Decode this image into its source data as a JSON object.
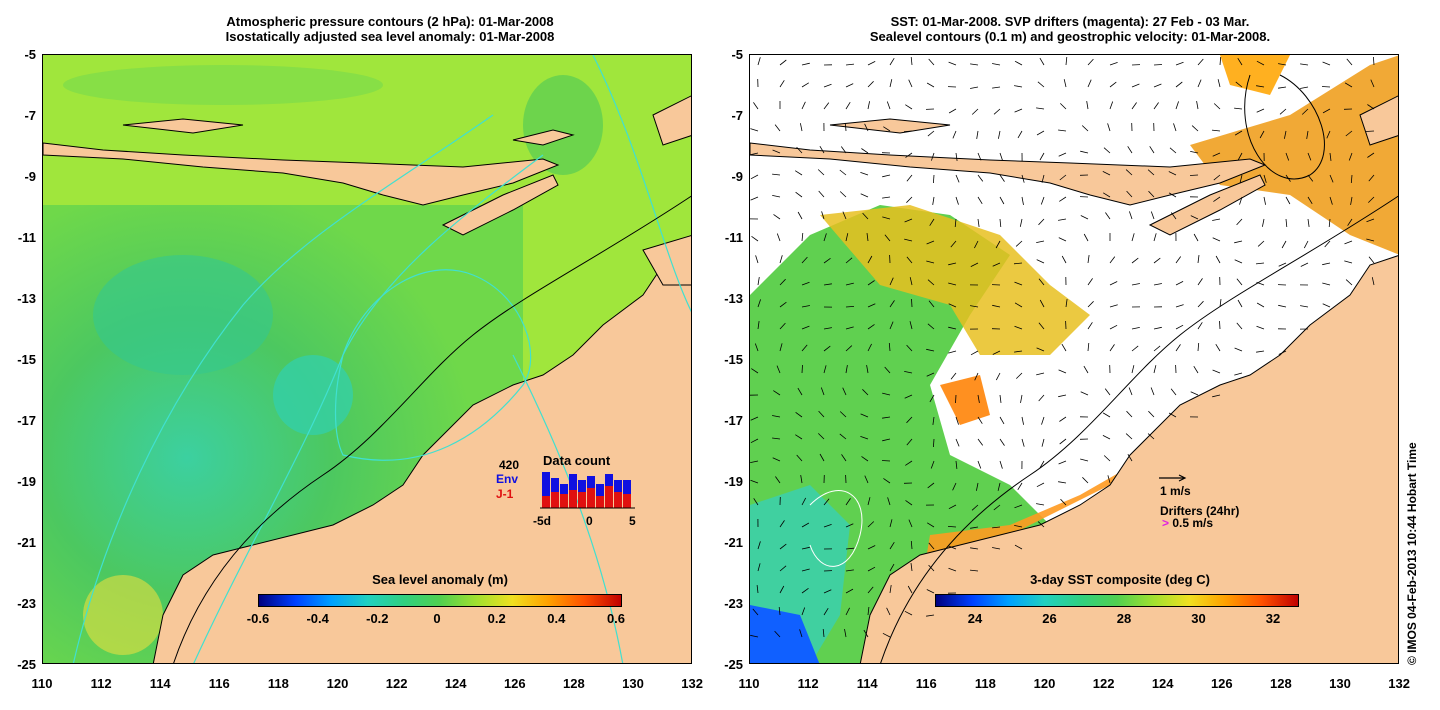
{
  "left_panel": {
    "title_line1": "Atmospheric pressure contours (2 hPa): 01-Mar-2008",
    "title_line2": "Isostatically adjusted sea level anomaly: 01-Mar-2008",
    "y_ticks": [
      "-5",
      "-7",
      "-9",
      "-11",
      "-13",
      "-15",
      "-17",
      "-19",
      "-21",
      "-23",
      "-25"
    ],
    "x_ticks": [
      "110",
      "112",
      "114",
      "116",
      "118",
      "120",
      "122",
      "124",
      "126",
      "128",
      "130",
      "132"
    ],
    "colorbar": {
      "label": "Sea level anomaly (m)",
      "ticks": [
        "-0.6",
        "-0.4",
        "-0.2",
        "0",
        "0.2",
        "0.4",
        "0.6"
      ]
    },
    "inset": {
      "count": "420",
      "env_label": "Env",
      "j1_label": "J-1",
      "title": "Data count",
      "x_ticks": [
        "-5d",
        "0",
        "5"
      ],
      "env_color": "#1010e0",
      "j1_color": "#e01010",
      "env_values": [
        0.9,
        0.75,
        0.6,
        0.85,
        0.7,
        0.8,
        0.6,
        0.85,
        0.7,
        0.7
      ],
      "j1_values": [
        0.3,
        0.4,
        0.35,
        0.45,
        0.4,
        0.5,
        0.3,
        0.55,
        0.4,
        0.35
      ]
    }
  },
  "right_panel": {
    "title_line1": "SST: 01-Mar-2008. SVP drifters (magenta): 27 Feb - 03 Mar.",
    "title_line2": "Sealevel contours (0.1 m) and geostrophic velocity: 01-Mar-2008.",
    "y_ticks": [
      "-5",
      "-7",
      "-9",
      "-11",
      "-13",
      "-15",
      "-17",
      "-19",
      "-21",
      "-23",
      "-25"
    ],
    "x_ticks": [
      "110",
      "112",
      "114",
      "116",
      "118",
      "120",
      "122",
      "124",
      "126",
      "128",
      "130",
      "132"
    ],
    "colorbar": {
      "label": "3-day SST composite (deg C)",
      "ticks": [
        "24",
        "26",
        "28",
        "30",
        "32"
      ]
    },
    "vector_key": "1 m/s",
    "drifters_label": "Drifters (24hr)",
    "drifter_key": "0.5 m/s"
  },
  "credit": "© IMOS 04-Feb-2013 10:44 Hobart Time",
  "colors": {
    "land": "#f8c89a",
    "ocean_green": "#5fd25a",
    "ocean_yellowgreen": "#b8ee30",
    "cyan_contour": "#40e0d0"
  }
}
